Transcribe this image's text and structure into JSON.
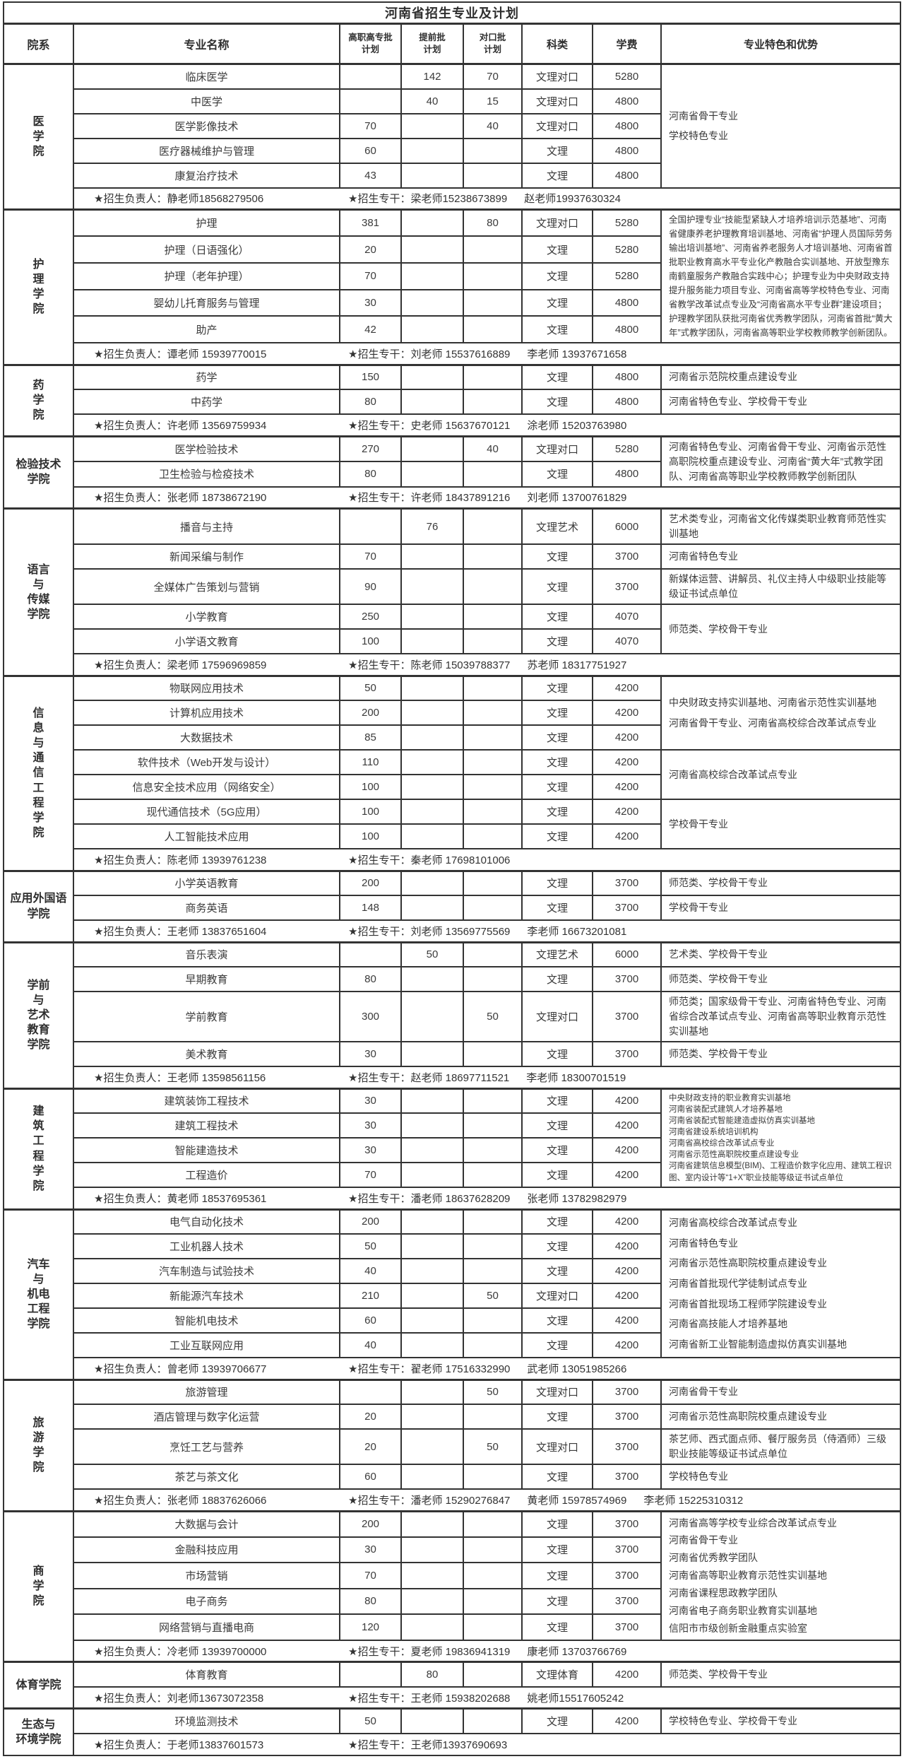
{
  "title": "河南省招生专业及计划",
  "columns": [
    "院系",
    "专业名称",
    "高职高专批\n计划",
    "提前批\n计划",
    "对口批\n计划",
    "科类",
    "学费",
    "专业特色和优势"
  ],
  "colors": {
    "border": "#333333",
    "text": "#3a3a3a",
    "background": "#ffffff"
  },
  "sections": [
    {
      "dept": "医\n学\n院",
      "majors": [
        {
          "name": "临床医学",
          "gz": "",
          "tq": "142",
          "dk": "70",
          "kelei": "文理对口",
          "fee": "5280"
        },
        {
          "name": "中医学",
          "gz": "",
          "tq": "40",
          "dk": "15",
          "kelei": "文理对口",
          "fee": "4800"
        },
        {
          "name": "医学影像技术",
          "gz": "70",
          "tq": "",
          "dk": "40",
          "kelei": "文理对口",
          "fee": "4800"
        },
        {
          "name": "医疗器械维护与管理",
          "gz": "60",
          "tq": "",
          "dk": "",
          "kelei": "文理",
          "fee": "4800"
        },
        {
          "name": "康复治疗技术",
          "gz": "43",
          "tq": "",
          "dk": "",
          "kelei": "文理",
          "fee": "4800"
        }
      ],
      "features": [
        {
          "start": 0,
          "span": 5,
          "cls": "lh2",
          "text": "河南省骨干专业\n学校特色专业"
        }
      ],
      "contact": {
        "leader": "★招生负责人：静老师18568279506",
        "specialist": "★招生专干：梁老师15238673899",
        "extras": [
          "赵老师19937630324"
        ]
      }
    },
    {
      "dept": "护\n理\n学\n院",
      "majors": [
        {
          "name": "护理",
          "gz": "381",
          "tq": "",
          "dk": "80",
          "kelei": "文理对口",
          "fee": "5280"
        },
        {
          "name": "护理（日语强化）",
          "gz": "20",
          "tq": "",
          "dk": "",
          "kelei": "文理",
          "fee": "5280"
        },
        {
          "name": "护理（老年护理）",
          "gz": "70",
          "tq": "",
          "dk": "",
          "kelei": "文理",
          "fee": "5280"
        },
        {
          "name": "婴幼儿托育服务与管理",
          "gz": "30",
          "tq": "",
          "dk": "",
          "kelei": "文理",
          "fee": "4800"
        },
        {
          "name": "助产",
          "gz": "42",
          "tq": "",
          "dk": "",
          "kelei": "文理",
          "fee": "4800"
        }
      ],
      "features": [
        {
          "start": 0,
          "span": 5,
          "cls": "sm",
          "text": "全国护理专业“技能型紧缺人才培养培训示范基地”、河南省健康养老护理教育培训基地、河南省“护理人员国际劳务输出培训基地”、河南省养老服务人才培训基地、河南省首批职业教育高水平专业化产教融合实训基地、开放型豫东南鹤童服务产教融合实践中心；护理专业为中央财政支持提升服务能力项目专业、河南省高等学校特色专业、河南省教学改革试点专业及“河南省高水平专业群”建设项目；护理教学团队获批河南省优秀教学团队，河南省首批“黄大年”式教学团队，河南省高等职业学校教师教学创新团队。"
        }
      ],
      "contact": {
        "leader": "★招生负责人：谭老师 15939770015",
        "specialist": "★招生专干：刘老师 15537616889",
        "extras": [
          "李老师 13937671658"
        ]
      }
    },
    {
      "dept": "药\n学\n院",
      "majors": [
        {
          "name": "药学",
          "gz": "150",
          "tq": "",
          "dk": "",
          "kelei": "文理",
          "fee": "4800"
        },
        {
          "name": "中药学",
          "gz": "80",
          "tq": "",
          "dk": "",
          "kelei": "文理",
          "fee": "4800"
        }
      ],
      "features": [
        {
          "start": 0,
          "span": 1,
          "text": "河南省示范院校重点建设专业"
        },
        {
          "start": 1,
          "span": 1,
          "text": "河南省特色专业、学校骨干专业"
        }
      ],
      "contact": {
        "leader": "★招生负责人：许老师 13569759934",
        "specialist": "★招生专干：史老师 15637670121",
        "extras": [
          "涂老师 15203763980"
        ]
      }
    },
    {
      "dept": "检验技术\n学院",
      "majors": [
        {
          "name": "医学检验技术",
          "gz": "270",
          "tq": "",
          "dk": "40",
          "kelei": "文理对口",
          "fee": "5280"
        },
        {
          "name": "卫生检验与检疫技术",
          "gz": "80",
          "tq": "",
          "dk": "",
          "kelei": "文理",
          "fee": "4800"
        }
      ],
      "features": [
        {
          "start": 0,
          "span": 2,
          "text": "河南省特色专业、河南省骨干专业、河南省示范性高职院校重点建设专业、河南省“黄大年”式教学团队、河南省高等职业学校教师教学创新团队"
        }
      ],
      "contact": {
        "leader": "★招生负责人：张老师 18738672190",
        "specialist": "★招生专干：许老师 18437891216",
        "extras": [
          "刘老师 13700761829"
        ]
      }
    },
    {
      "dept": "语言\n与\n传媒\n学院",
      "majors": [
        {
          "name": "播音与主持",
          "gz": "",
          "tq": "76",
          "dk": "",
          "kelei": "文理艺术",
          "fee": "6000"
        },
        {
          "name": "新闻采编与制作",
          "gz": "70",
          "tq": "",
          "dk": "",
          "kelei": "文理",
          "fee": "3700"
        },
        {
          "name": "全媒体广告策划与营销",
          "gz": "90",
          "tq": "",
          "dk": "",
          "kelei": "文理",
          "fee": "3700"
        },
        {
          "name": "小学教育",
          "gz": "250",
          "tq": "",
          "dk": "",
          "kelei": "文理",
          "fee": "4070"
        },
        {
          "name": "小学语文教育",
          "gz": "100",
          "tq": "",
          "dk": "",
          "kelei": "文理",
          "fee": "4070"
        }
      ],
      "features": [
        {
          "start": 0,
          "span": 1,
          "text": "艺术类专业，河南省文化传媒类职业教育师范性实训基地"
        },
        {
          "start": 1,
          "span": 1,
          "text": "河南省特色专业"
        },
        {
          "start": 2,
          "span": 1,
          "text": "新媒体运营、讲解员、礼仪主持人中级职业技能等级证书试点单位"
        },
        {
          "start": 3,
          "span": 2,
          "text": "师范类、学校骨干专业"
        }
      ],
      "contact": {
        "leader": "★招生负责人：梁老师 17596969859",
        "specialist": "★招生专干：陈老师 15039788377",
        "extras": [
          "苏老师 18317751927"
        ]
      }
    },
    {
      "dept": "信\n息\n与\n通\n信\n工\n程\n学\n院",
      "majors": [
        {
          "name": "物联网应用技术",
          "gz": "50",
          "tq": "",
          "dk": "",
          "kelei": "文理",
          "fee": "4200"
        },
        {
          "name": "计算机应用技术",
          "gz": "200",
          "tq": "",
          "dk": "",
          "kelei": "文理",
          "fee": "4200"
        },
        {
          "name": "大数据技术",
          "gz": "85",
          "tq": "",
          "dk": "",
          "kelei": "文理",
          "fee": "4200"
        },
        {
          "name": "软件技术（Web开发与设计）",
          "gz": "110",
          "tq": "",
          "dk": "",
          "kelei": "文理",
          "fee": "4200"
        },
        {
          "name": "信息安全技术应用（网络安全）",
          "gz": "100",
          "tq": "",
          "dk": "",
          "kelei": "文理",
          "fee": "4200"
        },
        {
          "name": "现代通信技术（5G应用）",
          "gz": "100",
          "tq": "",
          "dk": "",
          "kelei": "文理",
          "fee": "4200"
        },
        {
          "name": "人工智能技术应用",
          "gz": "100",
          "tq": "",
          "dk": "",
          "kelei": "文理",
          "fee": "4200"
        }
      ],
      "features": [
        {
          "start": 0,
          "span": 3,
          "cls": "lh2",
          "text": "中央财政支持实训基地、河南省示范性实训基地\n河南省骨干专业、河南省高校综合改革试点专业"
        },
        {
          "start": 3,
          "span": 2,
          "text": "河南省高校综合改革试点专业"
        },
        {
          "start": 5,
          "span": 2,
          "text": "学校骨干专业"
        }
      ],
      "contact": {
        "leader": "★招生负责人：陈老师 13939761238",
        "specialist": "★招生专干：秦老师 17698101006",
        "extras": []
      }
    },
    {
      "dept": "应用外国语\n学院",
      "majors": [
        {
          "name": "小学英语教育",
          "gz": "200",
          "tq": "",
          "dk": "",
          "kelei": "文理",
          "fee": "3700"
        },
        {
          "name": "商务英语",
          "gz": "148",
          "tq": "",
          "dk": "",
          "kelei": "文理",
          "fee": "3700"
        }
      ],
      "features": [
        {
          "start": 0,
          "span": 1,
          "text": "师范类、学校骨干专业"
        },
        {
          "start": 1,
          "span": 1,
          "text": "学校骨干专业"
        }
      ],
      "contact": {
        "leader": "★招生负责人：王老师 13837651604",
        "specialist": "★招生专干：刘老师 13569775569",
        "extras": [
          "李老师 16673201081"
        ]
      }
    },
    {
      "dept": "学前\n与\n艺术\n教育\n学院",
      "majors": [
        {
          "name": "音乐表演",
          "gz": "",
          "tq": "50",
          "dk": "",
          "kelei": "文理艺术",
          "fee": "6000"
        },
        {
          "name": "早期教育",
          "gz": "80",
          "tq": "",
          "dk": "",
          "kelei": "文理",
          "fee": "3700"
        },
        {
          "name": "学前教育",
          "gz": "300",
          "tq": "",
          "dk": "50",
          "kelei": "文理对口",
          "fee": "3700"
        },
        {
          "name": "美术教育",
          "gz": "30",
          "tq": "",
          "dk": "",
          "kelei": "文理",
          "fee": "3700"
        }
      ],
      "features": [
        {
          "start": 0,
          "span": 1,
          "text": "艺术类、学校骨干专业"
        },
        {
          "start": 1,
          "span": 1,
          "text": "师范类、学校骨干专业"
        },
        {
          "start": 2,
          "span": 1,
          "text": "师范类；国家级骨干专业、河南省特色专业、河南省综合改革试点专业、河南省高等职业教育示范性实训基地"
        },
        {
          "start": 3,
          "span": 1,
          "text": "师范类、学校骨干专业"
        }
      ],
      "contact": {
        "leader": "★招生负责人：王老师 13598561156",
        "specialist": "★招生专干：赵老师 18697711521",
        "extras": [
          "李老师 18300701519"
        ]
      }
    },
    {
      "dept": "建\n筑\n工\n程\n学\n院",
      "majors": [
        {
          "name": "建筑装饰工程技术",
          "gz": "30",
          "tq": "",
          "dk": "",
          "kelei": "文理",
          "fee": "4200"
        },
        {
          "name": "建筑工程技术",
          "gz": "30",
          "tq": "",
          "dk": "",
          "kelei": "文理",
          "fee": "4200"
        },
        {
          "name": "智能建造技术",
          "gz": "30",
          "tq": "",
          "dk": "",
          "kelei": "文理",
          "fee": "4200"
        },
        {
          "name": "工程造价",
          "gz": "70",
          "tq": "",
          "dk": "",
          "kelei": "文理",
          "fee": "4200"
        }
      ],
      "features": [
        {
          "start": 0,
          "span": 4,
          "cls": "xs",
          "text": "中央财政支持的职业教育实训基地\n河南省装配式建筑人才培养基地\n河南省装配式智能建造虚拟仿真实训基地\n河南省建设系统培训机构\n河南省高校综合改革试点专业\n河南省示范性高职院校重点建设专业\n河南省建筑信息模型(BIM)、工程造价数字化应用、建筑工程识图、室内设计等“1+X”职业技能等级证书试点单位"
        }
      ],
      "contact": {
        "leader": "★招生负责人：黄老师 18537695361",
        "specialist": "★招生专干：潘老师 18637628209",
        "extras": [
          "张老师 13782982979"
        ]
      }
    },
    {
      "dept": "汽车\n与\n机电\n工程\n学院",
      "majors": [
        {
          "name": "电气自动化技术",
          "gz": "200",
          "tq": "",
          "dk": "",
          "kelei": "文理",
          "fee": "4200"
        },
        {
          "name": "工业机器人技术",
          "gz": "50",
          "tq": "",
          "dk": "",
          "kelei": "文理",
          "fee": "4200"
        },
        {
          "name": "汽车制造与试验技术",
          "gz": "40",
          "tq": "",
          "dk": "",
          "kelei": "文理",
          "fee": "4200"
        },
        {
          "name": "新能源汽车技术",
          "gz": "210",
          "tq": "",
          "dk": "50",
          "kelei": "文理对口",
          "fee": "4200"
        },
        {
          "name": "智能机电技术",
          "gz": "60",
          "tq": "",
          "dk": "",
          "kelei": "文理",
          "fee": "4200"
        },
        {
          "name": "工业互联网应用",
          "gz": "40",
          "tq": "",
          "dk": "",
          "kelei": "文理",
          "fee": "4200"
        }
      ],
      "features": [
        {
          "start": 0,
          "span": 6,
          "cls": "lh2",
          "text": "河南省高校综合改革试点专业\n河南省特色专业\n河南省示范性高职院校重点建设专业\n河南省首批现代学徒制试点专业\n河南省首批现场工程师学院建设专业\n河南省高技能人才培养基地\n河南省新工业智能制造虚拟仿真实训基地"
        }
      ],
      "contact": {
        "leader": "★招生负责人：曾老师 13939706677",
        "specialist": "★招生专干：翟老师 17516332990",
        "extras": [
          "武老师 13051985266"
        ]
      }
    },
    {
      "dept": "旅\n游\n学\n院",
      "majors": [
        {
          "name": "旅游管理",
          "gz": "",
          "tq": "",
          "dk": "50",
          "kelei": "文理对口",
          "fee": "3700"
        },
        {
          "name": "酒店管理与数字化运营",
          "gz": "20",
          "tq": "",
          "dk": "",
          "kelei": "文理",
          "fee": "3700"
        },
        {
          "name": "烹饪工艺与营养",
          "gz": "20",
          "tq": "",
          "dk": "50",
          "kelei": "文理对口",
          "fee": "3700"
        },
        {
          "name": "茶艺与茶文化",
          "gz": "60",
          "tq": "",
          "dk": "",
          "kelei": "文理",
          "fee": "3700"
        }
      ],
      "features": [
        {
          "start": 0,
          "span": 1,
          "text": "河南省骨干专业"
        },
        {
          "start": 1,
          "span": 1,
          "text": "河南省示范性高职院校重点建设专业"
        },
        {
          "start": 2,
          "span": 1,
          "text": "茶艺师、西式面点师、餐厅服务员（侍酒师）三级职业技能等级证书试点单位"
        },
        {
          "start": 3,
          "span": 1,
          "text": "学校特色专业"
        }
      ],
      "contact": {
        "leader": "★招生负责人：张老师 18837626066",
        "specialist": "★招生专干：潘老师 15290276847",
        "extras": [
          "黄老师 15978574969",
          "李老师 15225310312"
        ]
      }
    },
    {
      "dept": "商\n学\n院",
      "majors": [
        {
          "name": "大数据与会计",
          "gz": "200",
          "tq": "",
          "dk": "",
          "kelei": "文理",
          "fee": "3700"
        },
        {
          "name": "金融科技应用",
          "gz": "30",
          "tq": "",
          "dk": "",
          "kelei": "文理",
          "fee": "3700"
        },
        {
          "name": "市场营销",
          "gz": "70",
          "tq": "",
          "dk": "",
          "kelei": "文理",
          "fee": "3700"
        },
        {
          "name": "电子商务",
          "gz": "80",
          "tq": "",
          "dk": "",
          "kelei": "文理",
          "fee": "3700"
        },
        {
          "name": "网络营销与直播电商",
          "gz": "120",
          "tq": "",
          "dk": "",
          "kelei": "文理",
          "fee": "3700"
        }
      ],
      "features": [
        {
          "start": 0,
          "span": 5,
          "cls": "lh18",
          "text": "河南省高等学校专业综合改革试点专业\n河南省骨干专业\n河南省优秀教学团队\n河南省高等职业教育示范性实训基地\n河南省课程思政教学团队\n河南省电子商务职业教育实训基地\n信阳市市级创新金融重点实验室"
        }
      ],
      "contact": {
        "leader": "★招生负责人：冷老师 13939700000",
        "specialist": "★招生专干：夏老师 19836941319",
        "extras": [
          "康老师 13703766769"
        ]
      }
    },
    {
      "dept": "体育学院",
      "majors": [
        {
          "name": "体育教育",
          "gz": "",
          "tq": "80",
          "dk": "",
          "kelei": "文理体育",
          "fee": "4200"
        }
      ],
      "features": [
        {
          "start": 0,
          "span": 1,
          "text": "师范类、学校骨干专业"
        }
      ],
      "contact": {
        "leader": "★招生负责人：刘老师13673072358",
        "specialist": "★招生专干：王老师 15938202688",
        "extras": [
          "姚老师15517605242"
        ]
      }
    },
    {
      "dept": "生态与\n环境学院",
      "majors": [
        {
          "name": "环境监测技术",
          "gz": "50",
          "tq": "",
          "dk": "",
          "kelei": "文理",
          "fee": "4200"
        }
      ],
      "features": [
        {
          "start": 0,
          "span": 1,
          "text": "学校特色专业、学校骨干专业"
        }
      ],
      "contact": {
        "leader": "★招生负责人：于老师13837601573",
        "specialist": "★招生专干：王老师13937690693",
        "extras": []
      }
    }
  ]
}
